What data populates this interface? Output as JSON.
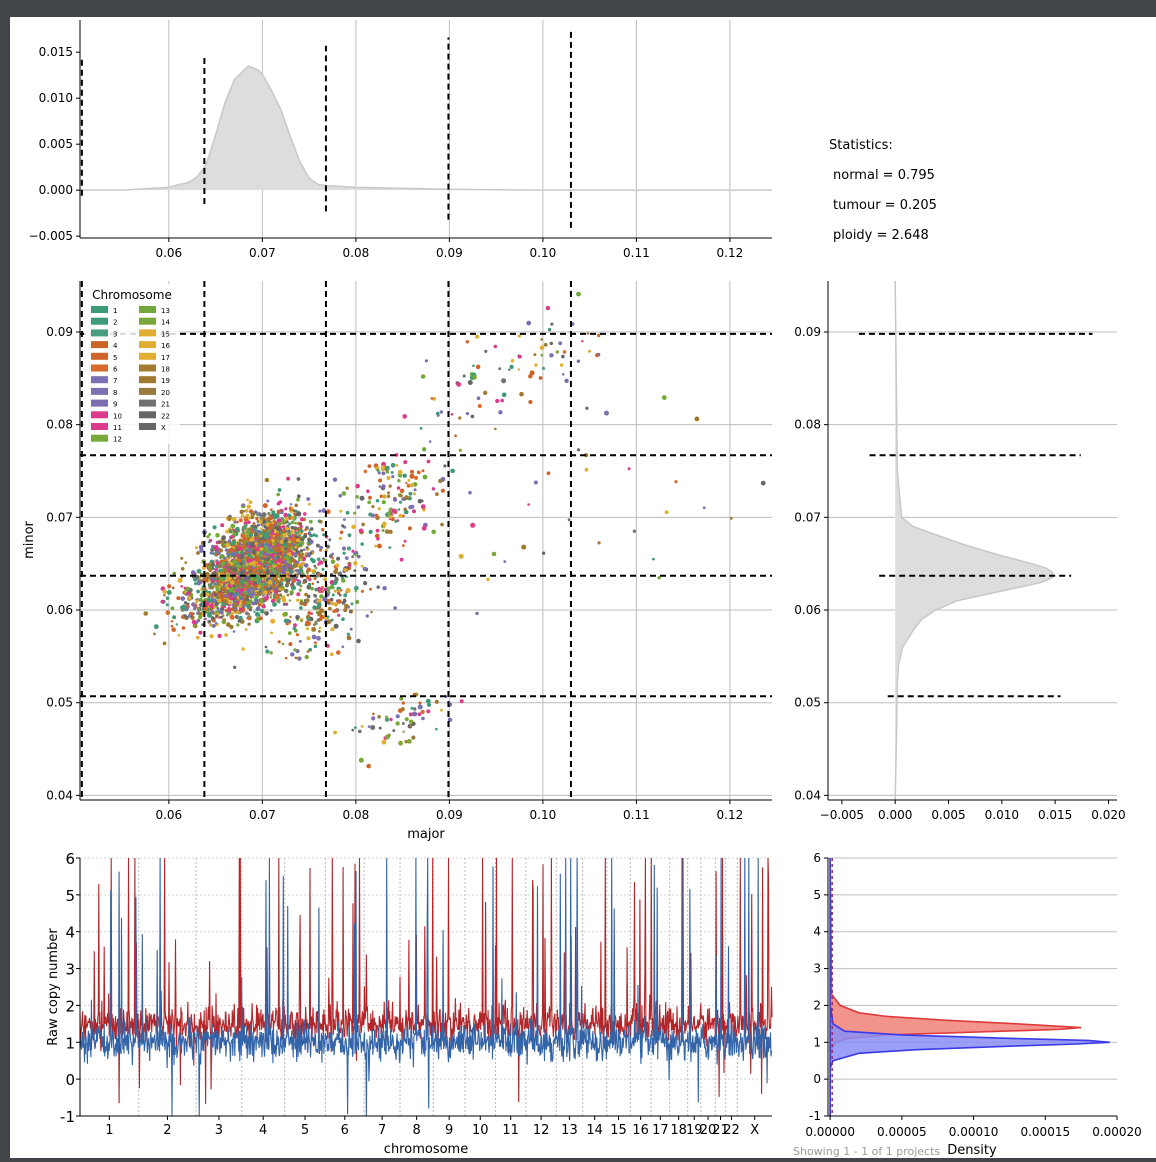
{
  "window": {
    "footer_text": "Showing 1 - 1 of 1 projects"
  },
  "stats": {
    "header": "Statistics:",
    "lines": [
      "normal = 0.795",
      "tumour = 0.205",
      "ploidy = 2.648"
    ]
  },
  "colors": {
    "density_fill": "#dddddd",
    "density_line": "#c8c8c8",
    "raw_red": "#b2262a",
    "raw_blue": "#3364a8",
    "hist_red_fill": "#f08078",
    "hist_red_line": "#e03a3a",
    "hist_blue_fill": "#8a8ef6",
    "hist_blue_line": "#3a3ae8"
  },
  "chart_data": [
    {
      "id": "major_density",
      "type": "area",
      "x": [
        0.0505,
        0.055,
        0.06,
        0.061,
        0.062,
        0.063,
        0.064,
        0.065,
        0.066,
        0.067,
        0.068,
        0.0685,
        0.069,
        0.0695,
        0.07,
        0.071,
        0.072,
        0.073,
        0.074,
        0.075,
        0.076,
        0.077,
        0.08,
        0.09,
        0.1,
        0.11,
        0.12,
        0.1245
      ],
      "y": [
        0.0,
        0.0,
        0.0003,
        0.0006,
        0.0008,
        0.0014,
        0.0028,
        0.006,
        0.0095,
        0.012,
        0.013,
        0.0135,
        0.0133,
        0.0131,
        0.0126,
        0.0108,
        0.0087,
        0.0058,
        0.0031,
        0.0013,
        0.0006,
        0.0005,
        0.0003,
        0.0001,
        0.0,
        0.0,
        0.0,
        0.0
      ],
      "xlim": [
        0.0505,
        0.1245
      ],
      "ylim": [
        -0.0052,
        0.0185
      ],
      "xticks": [
        "0.06",
        "0.07",
        "0.08",
        "0.09",
        "0.10",
        "0.11",
        "0.12"
      ],
      "yticks": [
        "0.015",
        "0.010",
        "0.005",
        "0.000",
        "−0.005"
      ],
      "peaks": [
        {
          "x": 0.0507,
          "y1": -0.0006,
          "y2": 0.0143
        },
        {
          "x": 0.0638,
          "y1": -0.0015,
          "y2": 0.0148
        },
        {
          "x": 0.0768,
          "y1": -0.0023,
          "y2": 0.0157
        },
        {
          "x": 0.0899,
          "y1": -0.0032,
          "y2": 0.0166
        },
        {
          "x": 0.103,
          "y1": -0.0041,
          "y2": 0.0176
        }
      ],
      "grid": true
    },
    {
      "id": "major_minor_scatter",
      "type": "scatter",
      "xlabel": "major",
      "ylabel": "minor",
      "xlim": [
        0.0505,
        0.1245
      ],
      "ylim": [
        0.0395,
        0.0955
      ],
      "xticks": [
        "0.06",
        "0.07",
        "0.08",
        "0.09",
        "0.10",
        "0.11",
        "0.12"
      ],
      "yticks": [
        "0.09",
        "0.08",
        "0.07",
        "0.06",
        "0.05",
        "0.04"
      ],
      "vlines": [
        0.0507,
        0.0638,
        0.0768,
        0.0899,
        0.103
      ],
      "hlines": [
        0.0898,
        0.0767,
        0.0637,
        0.0507
      ],
      "legend": {
        "title": "Chromosome",
        "location": "upper-left",
        "entries": [
          {
            "label": "1",
            "color": "#3c9a76"
          },
          {
            "label": "2",
            "color": "#3c9a76"
          },
          {
            "label": "3",
            "color": "#4a9c80"
          },
          {
            "label": "4",
            "color": "#cc6428"
          },
          {
            "label": "5",
            "color": "#d0632a"
          },
          {
            "label": "6",
            "color": "#d86a2a"
          },
          {
            "label": "7",
            "color": "#7a70b2"
          },
          {
            "label": "8",
            "color": "#7a70b2"
          },
          {
            "label": "9",
            "color": "#7c6cb0"
          },
          {
            "label": "10",
            "color": "#dc3a8a"
          },
          {
            "label": "11",
            "color": "#dc3a8a"
          },
          {
            "label": "12",
            "color": "#78a83a"
          },
          {
            "label": "13",
            "color": "#72a83a"
          },
          {
            "label": "14",
            "color": "#7aa838"
          },
          {
            "label": "15",
            "color": "#e0ae30"
          },
          {
            "label": "16",
            "color": "#e0ae30"
          },
          {
            "label": "17",
            "color": "#e0ae30"
          },
          {
            "label": "18",
            "color": "#a27a30"
          },
          {
            "label": "19",
            "color": "#a07830"
          },
          {
            "label": "20",
            "color": "#9a7a3c"
          },
          {
            "label": "21",
            "color": "#707070"
          },
          {
            "label": "22",
            "color": "#666666"
          },
          {
            "label": "X",
            "color": "#666666"
          }
        ]
      },
      "clusters": [
        {
          "cx": 0.0695,
          "cy": 0.0655,
          "sx": 0.0045,
          "sy": 0.0038,
          "n": 1900
        },
        {
          "cx": 0.0675,
          "cy": 0.0625,
          "sx": 0.0055,
          "sy": 0.0028,
          "n": 700
        },
        {
          "cx": 0.076,
          "cy": 0.061,
          "sx": 0.0045,
          "sy": 0.0045,
          "n": 250
        },
        {
          "cx": 0.084,
          "cy": 0.072,
          "sx": 0.005,
          "sy": 0.0045,
          "n": 160
        },
        {
          "cx": 0.085,
          "cy": 0.048,
          "sx": 0.004,
          "sy": 0.0025,
          "n": 60
        },
        {
          "cx": 0.096,
          "cy": 0.086,
          "sx": 0.008,
          "sy": 0.005,
          "n": 80
        },
        {
          "cx": 0.105,
          "cy": 0.07,
          "sx": 0.011,
          "sy": 0.011,
          "n": 30
        }
      ],
      "grid": true
    },
    {
      "id": "minor_density",
      "type": "area",
      "orientation": "horizontal",
      "y": [
        0.0395,
        0.045,
        0.052,
        0.054,
        0.056,
        0.058,
        0.059,
        0.06,
        0.061,
        0.062,
        0.063,
        0.0635,
        0.064,
        0.0645,
        0.065,
        0.066,
        0.067,
        0.068,
        0.069,
        0.07,
        0.075,
        0.0955
      ],
      "x": [
        0.0,
        0.0001,
        0.0002,
        0.0003,
        0.0007,
        0.0018,
        0.0025,
        0.0038,
        0.0058,
        0.0098,
        0.0138,
        0.0147,
        0.0148,
        0.0142,
        0.0128,
        0.0095,
        0.0066,
        0.0041,
        0.0017,
        0.0006,
        0.0002,
        0.0
      ],
      "xlim": [
        -0.0063,
        0.0208
      ],
      "ylim": [
        0.0395,
        0.0955
      ],
      "xticks": [
        "−0.005",
        "0.000",
        "0.005",
        "0.010",
        "0.015",
        "0.020"
      ],
      "yticks": [
        "0.09",
        "0.08",
        "0.07",
        "0.06",
        "0.05",
        "0.04"
      ],
      "peaks": [
        {
          "y": 0.0898,
          "x1": -0.0034,
          "x2": 0.0185
        },
        {
          "y": 0.0767,
          "x1": -0.0024,
          "x2": 0.0174
        },
        {
          "y": 0.0637,
          "x1": -0.0015,
          "x2": 0.0165
        },
        {
          "y": 0.0507,
          "x1": -0.0007,
          "x2": 0.0155
        }
      ],
      "grid": true
    },
    {
      "id": "raw_copy_number",
      "type": "line",
      "xlabel": "chromosome",
      "ylabel": "Raw copy number",
      "ylim": [
        -1,
        6
      ],
      "yticks": [
        "6",
        "5",
        "4",
        "3",
        "2",
        "1",
        "0",
        "-1"
      ],
      "categories": [
        "1",
        "2",
        "3",
        "4",
        "5",
        "6",
        "7",
        "8",
        "9",
        "10",
        "11",
        "12",
        "13",
        "14",
        "15",
        "16",
        "17",
        "18",
        "19",
        "20",
        "21",
        "22",
        "X"
      ],
      "chrom_fractions": [
        0.085,
        0.083,
        0.066,
        0.062,
        0.059,
        0.056,
        0.052,
        0.048,
        0.046,
        0.044,
        0.044,
        0.044,
        0.038,
        0.035,
        0.034,
        0.03,
        0.027,
        0.026,
        0.019,
        0.021,
        0.015,
        0.017,
        0.05
      ],
      "series": [
        {
          "color_key": "raw_red",
          "baseline": 1.5,
          "noise": 0.25,
          "spike_rate": 0.045
        },
        {
          "color_key": "raw_blue",
          "baseline": 1.0,
          "noise": 0.25,
          "spike_rate": 0.04
        }
      ],
      "grid": true
    },
    {
      "id": "copy_number_density",
      "type": "area",
      "orientation": "horizontal",
      "xlabel": "Density",
      "ylim": [
        -1,
        6
      ],
      "xlim": [
        -1.5e-06,
        0.0002
      ],
      "xticks": [
        "0.00000",
        "0.00005",
        "0.00010",
        "0.00015",
        "0.00020"
      ],
      "yticks": [
        "6",
        "5",
        "4",
        "3",
        "2",
        "1",
        "0",
        "-1"
      ],
      "series": [
        {
          "color_key": "hist_red",
          "y": [
            -1,
            0.6,
            0.9,
            1.0,
            1.1,
            1.2,
            1.3,
            1.35,
            1.4,
            1.5,
            1.6,
            1.7,
            1.8,
            2.0,
            2.3,
            6
          ],
          "x": [
            0,
            0,
            2e-06,
            4e-06,
            1.2e-05,
            4e-05,
            0.00012,
            0.00016,
            0.000175,
            0.00013,
            8e-05,
            4e-05,
            2e-05,
            7e-06,
            1e-06,
            0
          ]
        },
        {
          "color_key": "hist_blue",
          "y": [
            -1,
            0.3,
            0.5,
            0.7,
            0.8,
            0.9,
            0.95,
            1.0,
            1.05,
            1.1,
            1.2,
            1.3,
            1.5,
            2,
            6
          ],
          "x": [
            0,
            0,
            2e-06,
            2e-05,
            6e-05,
            0.00013,
            0.00017,
            0.000195,
            0.00018,
            0.00013,
            5e-05,
            1e-05,
            2e-06,
            0,
            0
          ]
        }
      ],
      "grid": true
    }
  ]
}
